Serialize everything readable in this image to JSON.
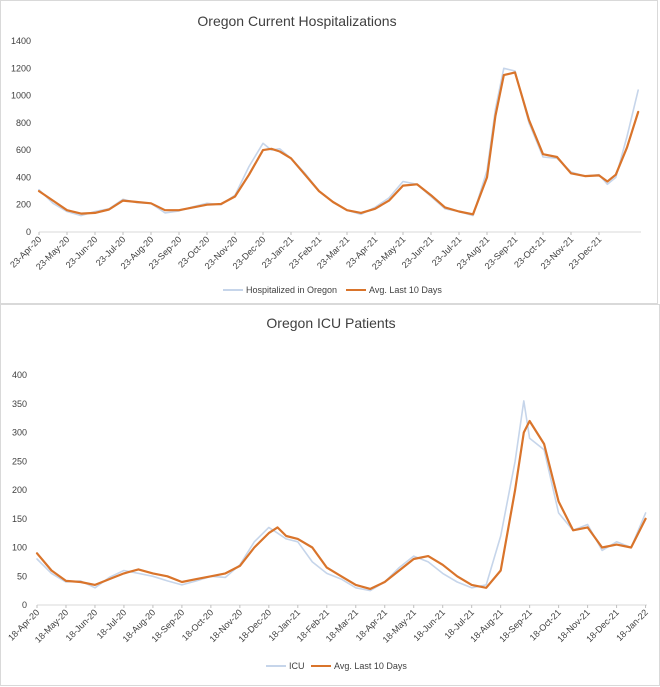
{
  "chart_data": [
    {
      "type": "line",
      "title": "Oregon Current Hospitalizations",
      "ylim": [
        0,
        1400
      ],
      "yticks": [
        "1400",
        "1200",
        "1000",
        "800",
        "600",
        "400",
        "200",
        "0"
      ],
      "x_tick_labels": [
        "23-Apr-20",
        "23-May-20",
        "23-Jun-20",
        "23-Jul-20",
        "23-Aug-20",
        "23-Sep-20",
        "23-Oct-20",
        "23-Nov-20",
        "23-Dec-20",
        "23-Jan-21",
        "23-Feb-21",
        "23-Mar-21",
        "23-Apr-21",
        "23-May-21",
        "23-Jun-21",
        "23-Jul-21",
        "23-Aug-21",
        "23-Sep-21",
        "23-Oct-21",
        "23-Nov-21",
        "23-Dec-21"
      ],
      "x_range": [
        0,
        21.5
      ],
      "legend": "bottom-center",
      "colors": {
        "raw": "#c6d5ea",
        "avg": "#d9742b"
      },
      "series": [
        {
          "name": "Hospitalized in Oregon",
          "x": [
            0,
            0.5,
            1,
            1.5,
            2,
            2.5,
            3,
            3.5,
            4,
            4.5,
            5,
            5.5,
            6,
            6.5,
            7,
            7.5,
            8,
            8.3,
            8.6,
            9,
            9.5,
            10,
            10.5,
            11,
            11.5,
            12,
            12.5,
            13,
            13.5,
            14,
            14.5,
            15,
            15.5,
            16,
            16.3,
            16.6,
            17,
            17.5,
            18,
            18.5,
            19,
            19.5,
            20,
            20.3,
            20.6,
            21,
            21.4
          ],
          "y": [
            310,
            210,
            150,
            120,
            150,
            170,
            240,
            215,
            210,
            140,
            155,
            185,
            210,
            200,
            270,
            480,
            650,
            600,
            610,
            540,
            430,
            300,
            220,
            160,
            130,
            180,
            250,
            370,
            350,
            260,
            170,
            150,
            120,
            450,
            900,
            1200,
            1180,
            800,
            550,
            540,
            440,
            410,
            420,
            350,
            400,
            700,
            1040
          ]
        },
        {
          "name": "Avg. Last 10 Days",
          "x": [
            0,
            0.5,
            1,
            1.5,
            2,
            2.5,
            3,
            3.5,
            4,
            4.5,
            5,
            5.5,
            6,
            6.5,
            7,
            7.5,
            8,
            8.3,
            8.6,
            9,
            9.5,
            10,
            10.5,
            11,
            11.5,
            12,
            12.5,
            13,
            13.5,
            14,
            14.5,
            15,
            15.5,
            16,
            16.3,
            16.6,
            17,
            17.5,
            18,
            18.5,
            19,
            19.5,
            20,
            20.3,
            20.6,
            21,
            21.4
          ],
          "y": [
            300,
            230,
            160,
            135,
            140,
            165,
            230,
            220,
            210,
            160,
            160,
            180,
            200,
            205,
            260,
            420,
            600,
            610,
            590,
            540,
            420,
            300,
            220,
            160,
            140,
            170,
            230,
            340,
            350,
            270,
            180,
            150,
            130,
            400,
            850,
            1150,
            1170,
            820,
            570,
            550,
            430,
            410,
            415,
            370,
            420,
            620,
            880
          ]
        }
      ]
    },
    {
      "type": "line",
      "title": "Oregon ICU Patients",
      "ylim": [
        0,
        400
      ],
      "yticks": [
        "400",
        "350",
        "300",
        "250",
        "200",
        "150",
        "100",
        "50",
        "0"
      ],
      "x_tick_labels": [
        "18-Apr-20",
        "18-May-20",
        "18-Jun-20",
        "18-Jul-20",
        "18-Aug-20",
        "18-Sep-20",
        "18-Oct-20",
        "18-Nov-20",
        "18-Dec-20",
        "18-Jan-21",
        "18-Feb-21",
        "18-Mar-21",
        "18-Apr-21",
        "18-May-21",
        "18-Jun-21",
        "18-Jul-21",
        "18-Aug-21",
        "18-Sep-21",
        "18-Oct-21",
        "18-Nov-21",
        "18-Dec-21",
        "18-Jan-22"
      ],
      "x_range": [
        0,
        21.05
      ],
      "legend": "bottom-center",
      "colors": {
        "raw": "#c6d5ea",
        "avg": "#d9742b"
      },
      "series": [
        {
          "name": "ICU",
          "x": [
            0,
            0.5,
            1,
            1.5,
            2,
            2.5,
            3,
            3.5,
            4,
            4.5,
            5,
            5.5,
            6,
            6.5,
            7,
            7.5,
            8,
            8.3,
            8.6,
            9,
            9.5,
            10,
            10.5,
            11,
            11.5,
            12,
            12.5,
            13,
            13.5,
            14,
            14.5,
            15,
            15.5,
            16,
            16.5,
            16.8,
            17,
            17.5,
            18,
            18.5,
            19,
            19.5,
            20,
            20.5,
            21
          ],
          "y": [
            80,
            55,
            40,
            42,
            30,
            48,
            60,
            55,
            50,
            42,
            35,
            42,
            50,
            48,
            70,
            110,
            135,
            125,
            115,
            110,
            75,
            55,
            45,
            30,
            25,
            40,
            65,
            85,
            75,
            55,
            40,
            30,
            35,
            120,
            250,
            355,
            290,
            270,
            160,
            130,
            140,
            95,
            110,
            100,
            160
          ]
        },
        {
          "name": "Avg. Last 10 Days",
          "x": [
            0,
            0.5,
            1,
            1.5,
            2,
            2.5,
            3,
            3.5,
            4,
            4.5,
            5,
            5.5,
            6,
            6.5,
            7,
            7.5,
            8,
            8.3,
            8.6,
            9,
            9.5,
            10,
            10.5,
            11,
            11.5,
            12,
            12.5,
            13,
            13.5,
            14,
            14.5,
            15,
            15.5,
            16,
            16.5,
            16.8,
            17,
            17.5,
            18,
            18.5,
            19,
            19.5,
            20,
            20.5,
            21
          ],
          "y": [
            90,
            60,
            42,
            40,
            35,
            45,
            55,
            62,
            55,
            50,
            40,
            45,
            50,
            55,
            68,
            100,
            125,
            135,
            120,
            115,
            100,
            65,
            50,
            35,
            28,
            40,
            60,
            80,
            85,
            70,
            50,
            35,
            30,
            60,
            200,
            300,
            320,
            280,
            180,
            130,
            135,
            100,
            105,
            100,
            150
          ]
        }
      ]
    }
  ]
}
